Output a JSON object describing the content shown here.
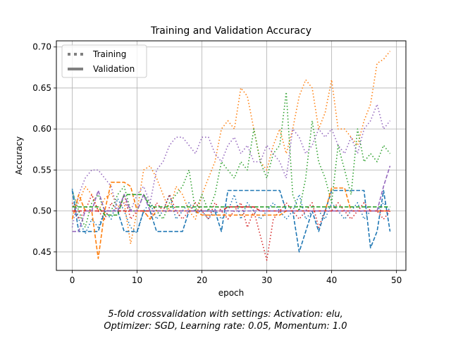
{
  "chart_data": {
    "type": "line",
    "title": "Training and Validation Accuracy",
    "xlabel": "epoch",
    "ylabel": "Accuracy",
    "xlim": [
      -2.45,
      51.45
    ],
    "ylim": [
      0.4275,
      0.7075
    ],
    "xticks": [
      0,
      10,
      20,
      30,
      40,
      50
    ],
    "yticks": [
      0.45,
      0.5,
      0.55,
      0.6,
      0.65,
      0.7
    ],
    "ytick_labels": [
      "0.45",
      "0.50",
      "0.55",
      "0.60",
      "0.65",
      "0.70"
    ],
    "grid": true,
    "legend": {
      "placement": "top-left",
      "entries": [
        {
          "label": "Training",
          "style": "dotted"
        },
        {
          "label": "Validation",
          "style": "dashed"
        }
      ]
    },
    "colors": [
      "#1f77b4",
      "#ff7f0e",
      "#2ca02c",
      "#d62728",
      "#9467bd"
    ],
    "x": [
      0,
      1,
      2,
      3,
      4,
      5,
      6,
      7,
      8,
      9,
      10,
      11,
      12,
      13,
      14,
      15,
      16,
      17,
      18,
      19,
      20,
      21,
      22,
      23,
      24,
      25,
      26,
      27,
      28,
      29,
      30,
      31,
      32,
      33,
      34,
      35,
      36,
      37,
      38,
      39,
      40,
      41,
      42,
      43,
      44,
      45,
      46,
      47,
      48,
      49
    ],
    "series": [
      {
        "kind": "training",
        "color": "#1f77b4",
        "values": [
          0.527,
          0.49,
          0.472,
          0.49,
          0.48,
          0.5,
          0.49,
          0.515,
          0.5,
          0.48,
          0.473,
          0.5,
          0.51,
          0.49,
          0.5,
          0.52,
          0.49,
          0.5,
          0.51,
          0.498,
          0.5,
          0.49,
          0.502,
          0.49,
          0.5,
          0.52,
          0.49,
          0.51,
          0.5,
          0.49,
          0.5,
          0.51,
          0.5,
          0.49,
          0.5,
          0.52,
          0.49,
          0.5,
          0.5,
          0.49,
          0.51,
          0.5,
          0.49,
          0.5,
          0.51,
          0.49,
          0.5,
          0.5,
          0.51,
          0.5
        ]
      },
      {
        "kind": "training",
        "color": "#ff7f0e",
        "values": [
          0.505,
          0.51,
          0.53,
          0.52,
          0.5,
          0.515,
          0.522,
          0.505,
          0.51,
          0.46,
          0.5,
          0.55,
          0.555,
          0.54,
          0.52,
          0.5,
          0.53,
          0.52,
          0.5,
          0.49,
          0.52,
          0.54,
          0.56,
          0.6,
          0.61,
          0.6,
          0.65,
          0.64,
          0.6,
          0.56,
          0.55,
          0.58,
          0.6,
          0.57,
          0.6,
          0.64,
          0.66,
          0.65,
          0.6,
          0.62,
          0.66,
          0.6,
          0.6,
          0.59,
          0.58,
          0.61,
          0.63,
          0.68,
          0.685,
          0.695
        ]
      },
      {
        "kind": "training",
        "color": "#2ca02c",
        "values": [
          0.525,
          0.5,
          0.48,
          0.51,
          0.52,
          0.5,
          0.5,
          0.52,
          0.53,
          0.5,
          0.5,
          0.52,
          0.51,
          0.5,
          0.49,
          0.51,
          0.52,
          0.53,
          0.55,
          0.5,
          0.52,
          0.5,
          0.52,
          0.56,
          0.55,
          0.54,
          0.56,
          0.55,
          0.6,
          0.56,
          0.54,
          0.57,
          0.58,
          0.645,
          0.52,
          0.5,
          0.54,
          0.61,
          0.56,
          0.54,
          0.51,
          0.58,
          0.55,
          0.52,
          0.6,
          0.56,
          0.57,
          0.56,
          0.58,
          0.57
        ]
      },
      {
        "kind": "training",
        "color": "#d62728",
        "values": [
          0.51,
          0.49,
          0.5,
          0.52,
          0.5,
          0.49,
          0.51,
          0.5,
          0.52,
          0.49,
          0.5,
          0.5,
          0.49,
          0.51,
          0.5,
          0.52,
          0.5,
          0.49,
          0.5,
          0.51,
          0.5,
          0.49,
          0.51,
          0.5,
          0.49,
          0.5,
          0.51,
          0.48,
          0.5,
          0.47,
          0.44,
          0.49,
          0.5,
          0.51,
          0.5,
          0.49,
          0.5,
          0.51,
          0.48,
          0.5,
          0.5,
          0.51,
          0.5,
          0.49,
          0.5,
          0.51,
          0.5,
          0.5,
          0.49,
          0.5
        ]
      },
      {
        "kind": "training",
        "color": "#9467bd",
        "values": [
          0.48,
          0.52,
          0.54,
          0.55,
          0.55,
          0.54,
          0.53,
          0.5,
          0.51,
          0.5,
          0.52,
          0.53,
          0.51,
          0.55,
          0.56,
          0.58,
          0.59,
          0.59,
          0.58,
          0.57,
          0.59,
          0.59,
          0.57,
          0.56,
          0.58,
          0.59,
          0.57,
          0.58,
          0.56,
          0.56,
          0.58,
          0.57,
          0.56,
          0.54,
          0.6,
          0.59,
          0.57,
          0.58,
          0.6,
          0.59,
          0.6,
          0.58,
          0.57,
          0.59,
          0.57,
          0.6,
          0.61,
          0.63,
          0.6,
          0.61
        ]
      },
      {
        "kind": "validation",
        "color": "#1f77b4",
        "values": [
          0.525,
          0.475,
          0.475,
          0.475,
          0.475,
          0.5,
          0.5,
          0.5,
          0.475,
          0.475,
          0.475,
          0.5,
          0.5,
          0.475,
          0.475,
          0.475,
          0.475,
          0.475,
          0.5,
          0.5,
          0.5,
          0.5,
          0.5,
          0.475,
          0.525,
          0.525,
          0.525,
          0.525,
          0.525,
          0.525,
          0.525,
          0.525,
          0.525,
          0.5,
          0.5,
          0.45,
          0.475,
          0.5,
          0.475,
          0.5,
          0.525,
          0.525,
          0.525,
          0.525,
          0.525,
          0.525,
          0.455,
          0.475,
          0.525,
          0.475
        ]
      },
      {
        "kind": "validation",
        "color": "#ff7f0e",
        "values": [
          0.49,
          0.52,
          0.5,
          0.5,
          0.442,
          0.5,
          0.535,
          0.535,
          0.535,
          0.53,
          0.5,
          0.5,
          0.49,
          0.5,
          0.5,
          0.5,
          0.5,
          0.5,
          0.5,
          0.5,
          0.495,
          0.495,
          0.495,
          0.495,
          0.495,
          0.495,
          0.495,
          0.495,
          0.495,
          0.495,
          0.495,
          0.495,
          0.495,
          0.5,
          0.5,
          0.5,
          0.5,
          0.5,
          0.5,
          0.5,
          0.528,
          0.528,
          0.528,
          0.5,
          0.5,
          0.5,
          0.5,
          0.5,
          0.5,
          0.5
        ]
      },
      {
        "kind": "validation",
        "color": "#2ca02c",
        "values": [
          0.505,
          0.505,
          0.505,
          0.505,
          0.505,
          0.495,
          0.495,
          0.495,
          0.52,
          0.52,
          0.52,
          0.52,
          0.505,
          0.505,
          0.505,
          0.505,
          0.505,
          0.505,
          0.505,
          0.505,
          0.505,
          0.505,
          0.505,
          0.505,
          0.505,
          0.505,
          0.505,
          0.505,
          0.505,
          0.505,
          0.505,
          0.505,
          0.505,
          0.505,
          0.505,
          0.505,
          0.505,
          0.505,
          0.505,
          0.505,
          0.505,
          0.505,
          0.505,
          0.505,
          0.505,
          0.505,
          0.505,
          0.505,
          0.505,
          0.505
        ]
      },
      {
        "kind": "validation",
        "color": "#d62728",
        "values": [
          0.5,
          0.5,
          0.5,
          0.5,
          0.5,
          0.5,
          0.5,
          0.5,
          0.5,
          0.5,
          0.5,
          0.5,
          0.5,
          0.5,
          0.5,
          0.5,
          0.5,
          0.5,
          0.5,
          0.5,
          0.5,
          0.5,
          0.5,
          0.5,
          0.505,
          0.505,
          0.505,
          0.505,
          0.505,
          0.5,
          0.5,
          0.5,
          0.5,
          0.5,
          0.5,
          0.5,
          0.5,
          0.5,
          0.5,
          0.5,
          0.5,
          0.5,
          0.5,
          0.5,
          0.5,
          0.5,
          0.5,
          0.5,
          0.5,
          0.5
        ]
      },
      {
        "kind": "validation",
        "color": "#9467bd",
        "values": [
          0.475,
          0.475,
          0.5,
          0.5,
          0.525,
          0.5,
          0.5,
          0.5,
          0.52,
          0.5,
          0.5,
          0.52,
          0.5,
          0.5,
          0.5,
          0.5,
          0.5,
          0.5,
          0.5,
          0.5,
          0.5,
          0.5,
          0.5,
          0.5,
          0.5,
          0.5,
          0.5,
          0.5,
          0.5,
          0.5,
          0.5,
          0.5,
          0.5,
          0.5,
          0.5,
          0.5,
          0.5,
          0.5,
          0.5,
          0.5,
          0.5,
          0.5,
          0.5,
          0.5,
          0.5,
          0.5,
          0.5,
          0.5,
          0.53,
          0.555
        ]
      }
    ],
    "caption_lines": [
      "5-fold crossvalidation with settings: Activation: elu,",
      "Optimizer: SGD, Learning rate: 0.05, Momentum: 1.0"
    ]
  }
}
